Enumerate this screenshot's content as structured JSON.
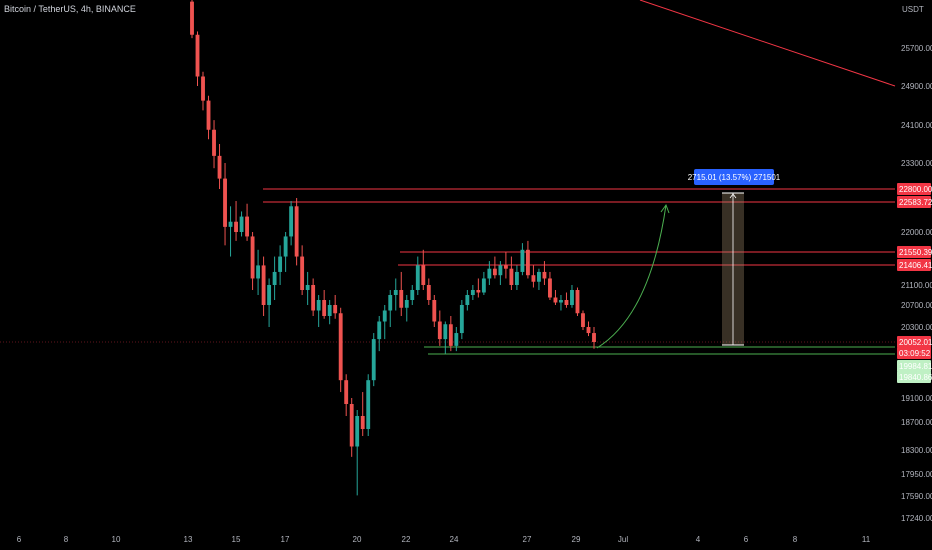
{
  "chart_data": {
    "type": "candlestick",
    "title": "Bitcoin / TetherUS, 4h, BINANCE",
    "currency": "USDT",
    "y_ticks": [
      "25700.00",
      "24900.00",
      "24100.00",
      "23300.00",
      "22000.00",
      "21100.00",
      "20700.00",
      "20300.00",
      "19100.00",
      "18700.00",
      "18300.00",
      "17950.00",
      "17590.00",
      "17240.00"
    ],
    "x_ticks": [
      "6",
      "8",
      "10",
      "13",
      "15",
      "17",
      "20",
      "22",
      "24",
      "27",
      "29",
      "Jul",
      "4",
      "6",
      "8",
      "11"
    ],
    "resistance_levels": [
      {
        "label": "22800.00",
        "color": "#f23645"
      },
      {
        "label": "22583.72",
        "color": "#f23645"
      },
      {
        "label": "21550.39",
        "color": "#f23645"
      },
      {
        "label": "21406.41",
        "color": "#f23645"
      }
    ],
    "support_levels": [
      {
        "label": "19984.81",
        "color": "#4caf50"
      },
      {
        "label": "19840.86",
        "color": "#4caf50"
      }
    ],
    "current_price": {
      "value": "20052.01",
      "countdown": "03:09:52",
      "color": "#f23645"
    },
    "measure_label": "2715.01 (13.57%) 271501",
    "colors": {
      "up": "#26a69a",
      "down": "#ef5350",
      "background": "#000000",
      "measure_bg": "#2962ff"
    },
    "candles": [
      {
        "o": 26400,
        "h": 26500,
        "l": 25850,
        "c": 25900
      },
      {
        "o": 25900,
        "h": 25950,
        "l": 24900,
        "c": 25100
      },
      {
        "o": 25100,
        "h": 25200,
        "l": 24400,
        "c": 24600
      },
      {
        "o": 24600,
        "h": 24700,
        "l": 23800,
        "c": 24000
      },
      {
        "o": 24000,
        "h": 24200,
        "l": 23200,
        "c": 23450
      },
      {
        "o": 23450,
        "h": 23700,
        "l": 22800,
        "c": 23000
      },
      {
        "o": 23000,
        "h": 23300,
        "l": 21700,
        "c": 22100
      },
      {
        "o": 22100,
        "h": 22500,
        "l": 21500,
        "c": 22200
      },
      {
        "o": 22200,
        "h": 22600,
        "l": 21800,
        "c": 22000
      },
      {
        "o": 22000,
        "h": 22400,
        "l": 21900,
        "c": 22300
      },
      {
        "o": 22300,
        "h": 22550,
        "l": 21800,
        "c": 21900
      },
      {
        "o": 21900,
        "h": 22000,
        "l": 21000,
        "c": 21200
      },
      {
        "o": 21200,
        "h": 21600,
        "l": 20900,
        "c": 21400
      },
      {
        "o": 21400,
        "h": 21500,
        "l": 20500,
        "c": 20700
      },
      {
        "o": 20700,
        "h": 21200,
        "l": 20300,
        "c": 21100
      },
      {
        "o": 21100,
        "h": 21500,
        "l": 20800,
        "c": 21300
      },
      {
        "o": 21300,
        "h": 21700,
        "l": 21100,
        "c": 21500
      },
      {
        "o": 21500,
        "h": 22000,
        "l": 21300,
        "c": 21900
      },
      {
        "o": 21900,
        "h": 22600,
        "l": 21700,
        "c": 22500
      },
      {
        "o": 22500,
        "h": 22650,
        "l": 21400,
        "c": 21500
      },
      {
        "o": 21500,
        "h": 21700,
        "l": 20900,
        "c": 21000
      },
      {
        "o": 21000,
        "h": 21300,
        "l": 20700,
        "c": 21100
      },
      {
        "o": 21100,
        "h": 21200,
        "l": 20500,
        "c": 20600
      },
      {
        "o": 20600,
        "h": 20900,
        "l": 20300,
        "c": 20800
      },
      {
        "o": 20800,
        "h": 21000,
        "l": 20450,
        "c": 20500
      },
      {
        "o": 20500,
        "h": 20800,
        "l": 20350,
        "c": 20700
      },
      {
        "o": 20700,
        "h": 20900,
        "l": 20450,
        "c": 20550
      },
      {
        "o": 20550,
        "h": 20650,
        "l": 19200,
        "c": 19400
      },
      {
        "o": 19400,
        "h": 19500,
        "l": 18800,
        "c": 19000
      },
      {
        "o": 19000,
        "h": 19100,
        "l": 18200,
        "c": 18350
      },
      {
        "o": 18350,
        "h": 18900,
        "l": 17600,
        "c": 18800
      },
      {
        "o": 18800,
        "h": 19200,
        "l": 18500,
        "c": 18600
      },
      {
        "o": 18600,
        "h": 19500,
        "l": 18500,
        "c": 19400
      },
      {
        "o": 19400,
        "h": 20200,
        "l": 19300,
        "c": 20100
      },
      {
        "o": 20100,
        "h": 20500,
        "l": 19900,
        "c": 20400
      },
      {
        "o": 20400,
        "h": 20700,
        "l": 20100,
        "c": 20600
      },
      {
        "o": 20600,
        "h": 21000,
        "l": 20300,
        "c": 20900
      },
      {
        "o": 20900,
        "h": 21200,
        "l": 20600,
        "c": 21000
      },
      {
        "o": 21000,
        "h": 21300,
        "l": 20500,
        "c": 20650
      },
      {
        "o": 20650,
        "h": 20900,
        "l": 20400,
        "c": 20800
      },
      {
        "o": 20800,
        "h": 21100,
        "l": 20700,
        "c": 21000
      },
      {
        "o": 21000,
        "h": 21500,
        "l": 20900,
        "c": 21400
      },
      {
        "o": 21400,
        "h": 21600,
        "l": 21000,
        "c": 21100
      },
      {
        "o": 21100,
        "h": 21200,
        "l": 20700,
        "c": 20800
      },
      {
        "o": 20800,
        "h": 20900,
        "l": 20300,
        "c": 20400
      },
      {
        "o": 20400,
        "h": 20600,
        "l": 20000,
        "c": 20100
      },
      {
        "o": 20100,
        "h": 20400,
        "l": 19850,
        "c": 20350
      },
      {
        "o": 20350,
        "h": 20500,
        "l": 19900,
        "c": 20000
      },
      {
        "o": 20000,
        "h": 20300,
        "l": 19900,
        "c": 20200
      },
      {
        "o": 20200,
        "h": 20800,
        "l": 20100,
        "c": 20700
      },
      {
        "o": 20700,
        "h": 21000,
        "l": 20600,
        "c": 20900
      },
      {
        "o": 20900,
        "h": 21100,
        "l": 20800,
        "c": 21000
      },
      {
        "o": 21000,
        "h": 21200,
        "l": 20850,
        "c": 20950
      },
      {
        "o": 20950,
        "h": 21300,
        "l": 20900,
        "c": 21200
      },
      {
        "o": 21200,
        "h": 21450,
        "l": 21100,
        "c": 21350
      },
      {
        "o": 21350,
        "h": 21500,
        "l": 21200,
        "c": 21250
      },
      {
        "o": 21250,
        "h": 21450,
        "l": 21100,
        "c": 21400
      },
      {
        "o": 21400,
        "h": 21550,
        "l": 21200,
        "c": 21350
      },
      {
        "o": 21350,
        "h": 21500,
        "l": 21000,
        "c": 21100
      },
      {
        "o": 21100,
        "h": 21400,
        "l": 21000,
        "c": 21300
      },
      {
        "o": 21300,
        "h": 21750,
        "l": 21250,
        "c": 21600
      },
      {
        "o": 21600,
        "h": 21800,
        "l": 21200,
        "c": 21250
      },
      {
        "o": 21250,
        "h": 21400,
        "l": 21050,
        "c": 21150
      },
      {
        "o": 21150,
        "h": 21350,
        "l": 21000,
        "c": 21300
      },
      {
        "o": 21300,
        "h": 21450,
        "l": 21100,
        "c": 21200
      },
      {
        "o": 21200,
        "h": 21300,
        "l": 20800,
        "c": 20850
      },
      {
        "o": 20850,
        "h": 21000,
        "l": 20700,
        "c": 20750
      },
      {
        "o": 20750,
        "h": 20900,
        "l": 20600,
        "c": 20800
      },
      {
        "o": 20800,
        "h": 20950,
        "l": 20650,
        "c": 20700
      },
      {
        "o": 20700,
        "h": 21100,
        "l": 20650,
        "c": 21000
      },
      {
        "o": 21000,
        "h": 21050,
        "l": 20500,
        "c": 20550
      },
      {
        "o": 20550,
        "h": 20600,
        "l": 20250,
        "c": 20300
      },
      {
        "o": 20300,
        "h": 20400,
        "l": 20150,
        "c": 20200
      },
      {
        "o": 20200,
        "h": 20300,
        "l": 19950,
        "c": 20052
      }
    ]
  }
}
